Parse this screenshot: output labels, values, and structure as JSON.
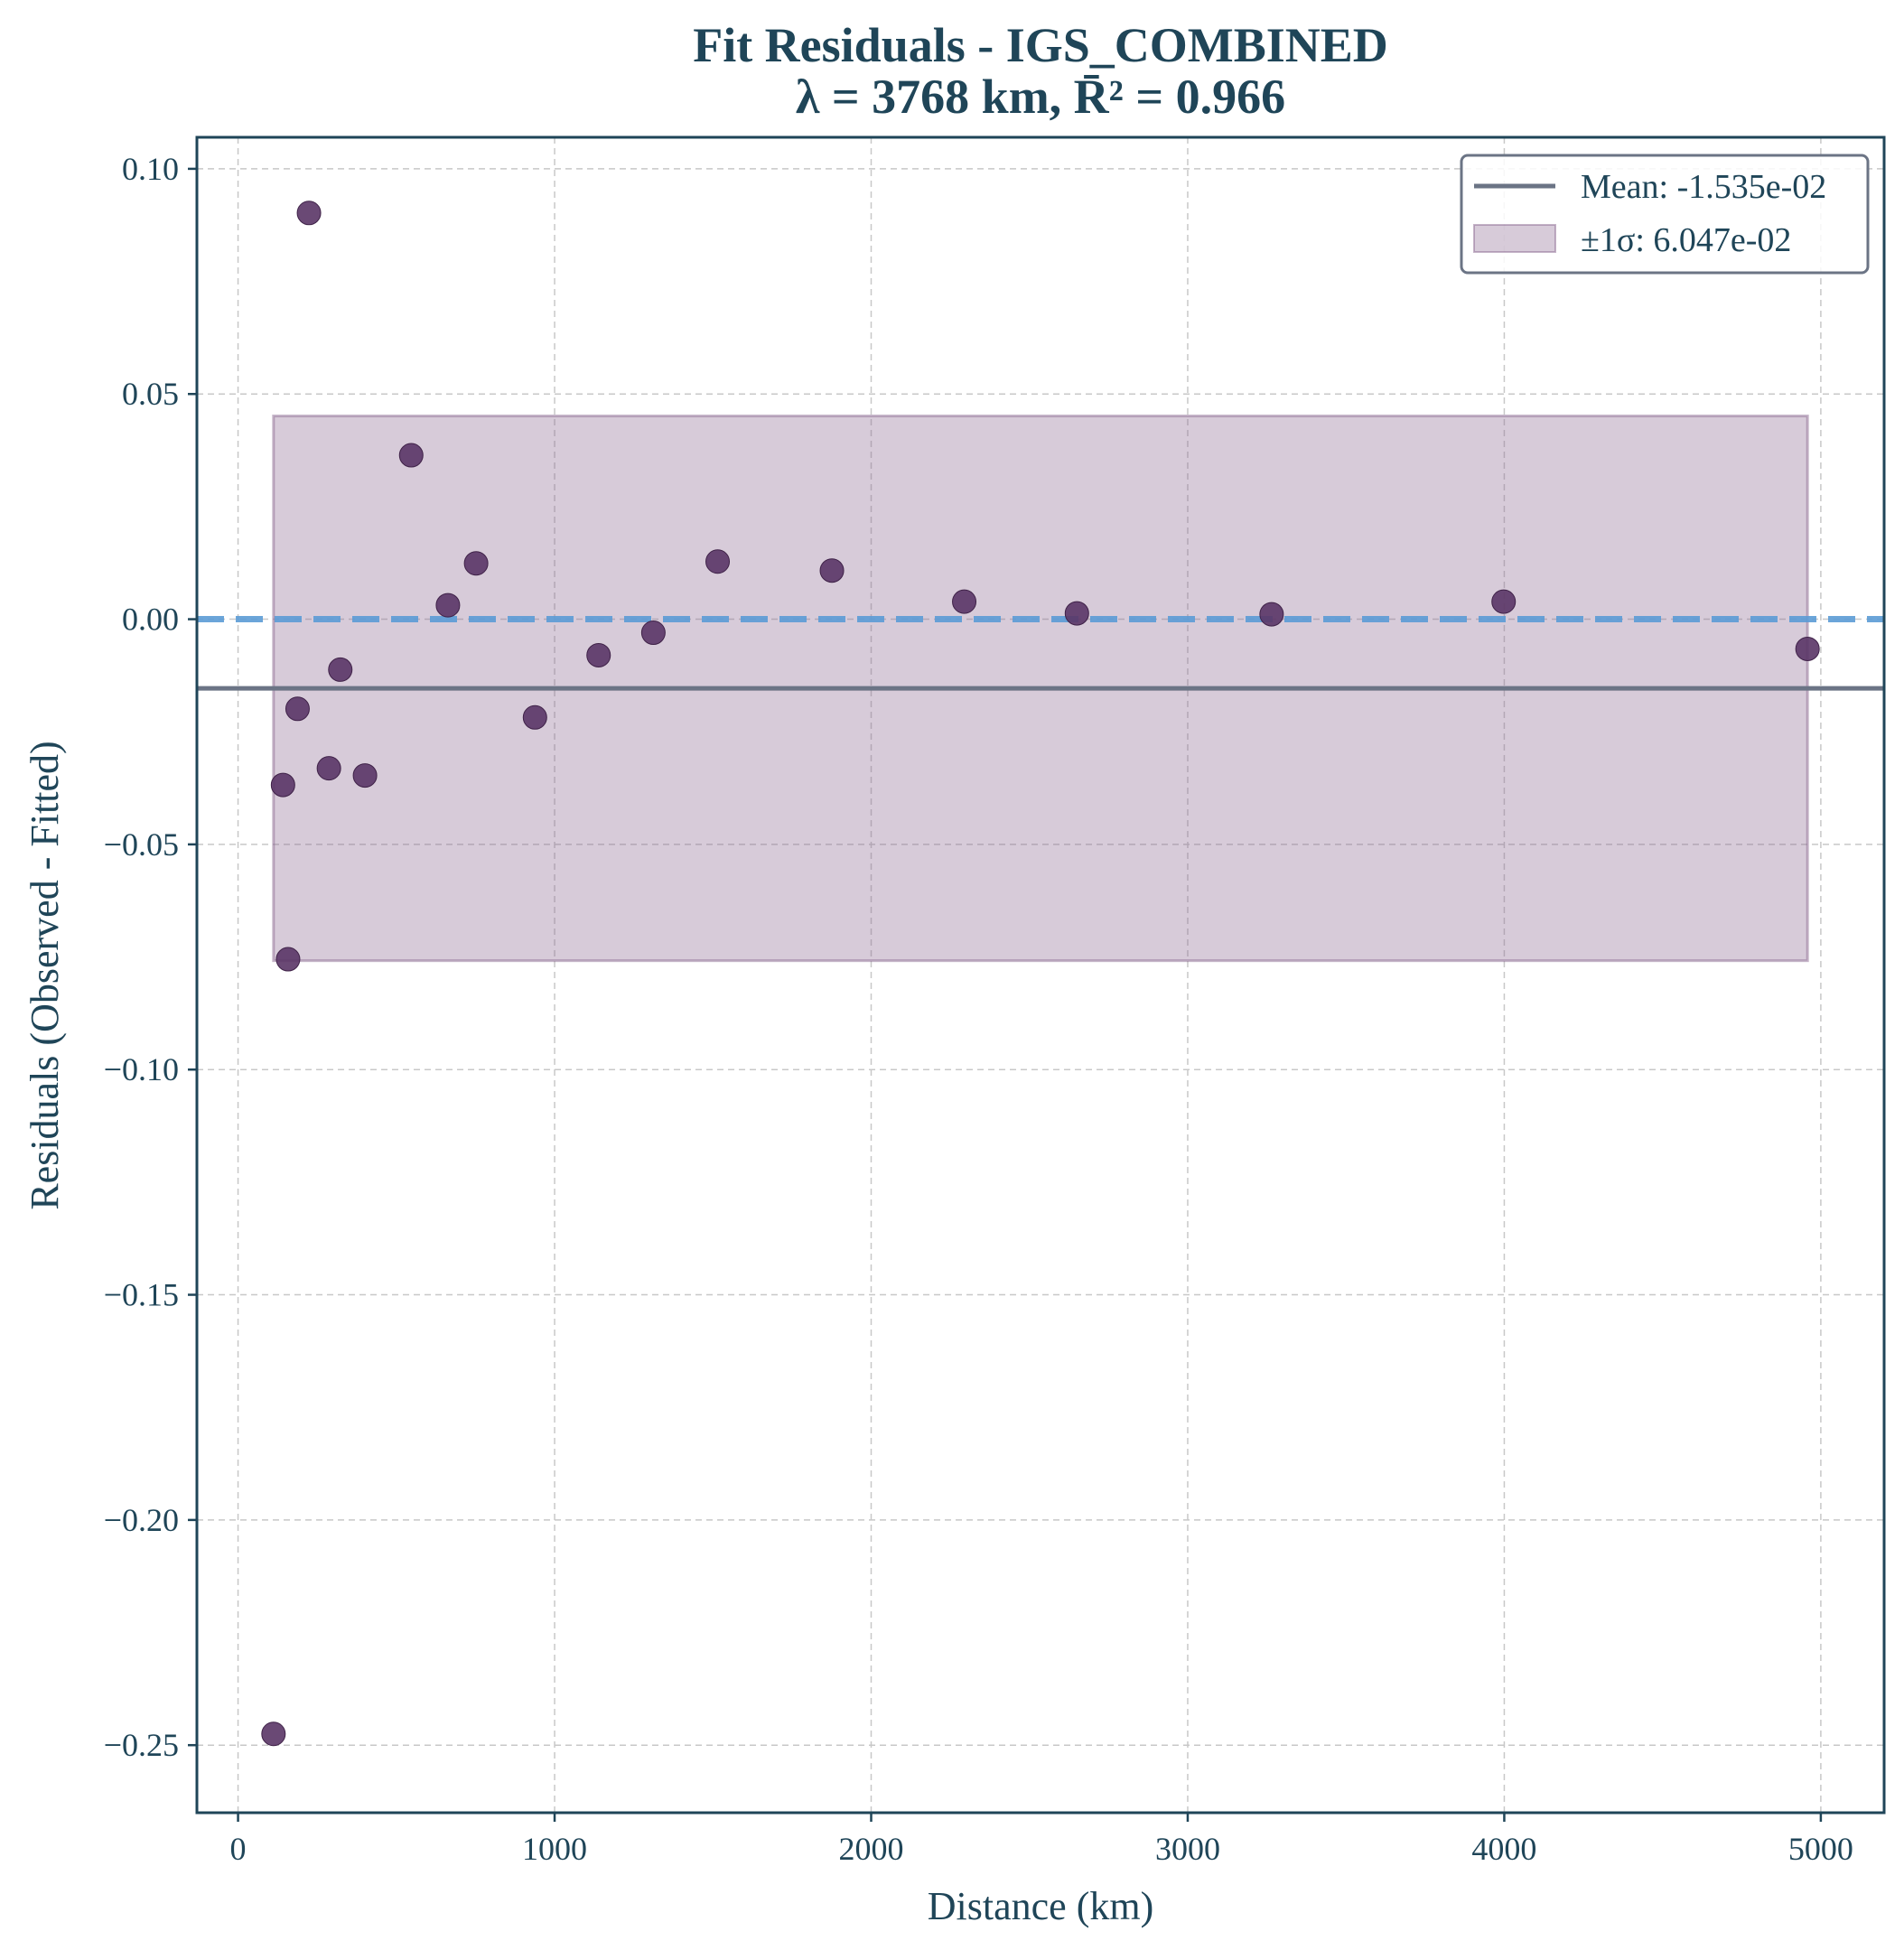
{
  "chart_data": {
    "type": "scatter",
    "title": "Fit Residuals - IGS_COMBINED",
    "subtitle": "λ = 3768 km, R̄² = 0.966",
    "xlabel": "Distance (km)",
    "ylabel": "Residuals (Observed - Fitted)",
    "xlim": [
      -130,
      5200
    ],
    "ylim": [
      -0.265,
      0.107
    ],
    "xticks": [
      0,
      1000,
      2000,
      3000,
      4000,
      5000
    ],
    "xtick_labels": [
      "0",
      "1000",
      "2000",
      "3000",
      "4000",
      "5000"
    ],
    "yticks": [
      0.1,
      0.05,
      0.0,
      -0.05,
      -0.1,
      -0.15,
      -0.2,
      -0.25
    ],
    "ytick_labels": [
      "0.10",
      "0.05",
      "0.00",
      "−0.05",
      "−0.10",
      "−0.15",
      "−0.20",
      "−0.25"
    ],
    "grid": true,
    "legend_position": "top-right",
    "zero_line": {
      "y": 0.0,
      "color": "#5b9bd5",
      "style": "dashed"
    },
    "mean": {
      "label": "Mean: -1.535e-02",
      "value": -0.01535,
      "color": "#6b7485"
    },
    "sigma_band": {
      "label": "±1σ: 6.047e-02",
      "lower": -0.07582,
      "upper": 0.04512,
      "x_range": [
        112,
        4958
      ],
      "color": "#8b6a92"
    },
    "points_color": "#5a3566",
    "x": [
      112,
      142,
      158,
      188,
      224,
      287,
      323,
      401,
      547,
      663,
      752,
      938,
      1139,
      1312,
      1515,
      1876,
      2294,
      2650,
      3265,
      3998,
      4958
    ],
    "y": [
      -0.2475,
      -0.0368,
      -0.0755,
      -0.0199,
      0.0902,
      -0.0331,
      -0.0112,
      -0.0347,
      0.0364,
      0.0031,
      0.0124,
      -0.0218,
      -0.008,
      -0.003,
      0.0128,
      0.0108,
      0.0039,
      0.0013,
      0.0011,
      0.0039,
      -0.0066
    ]
  }
}
